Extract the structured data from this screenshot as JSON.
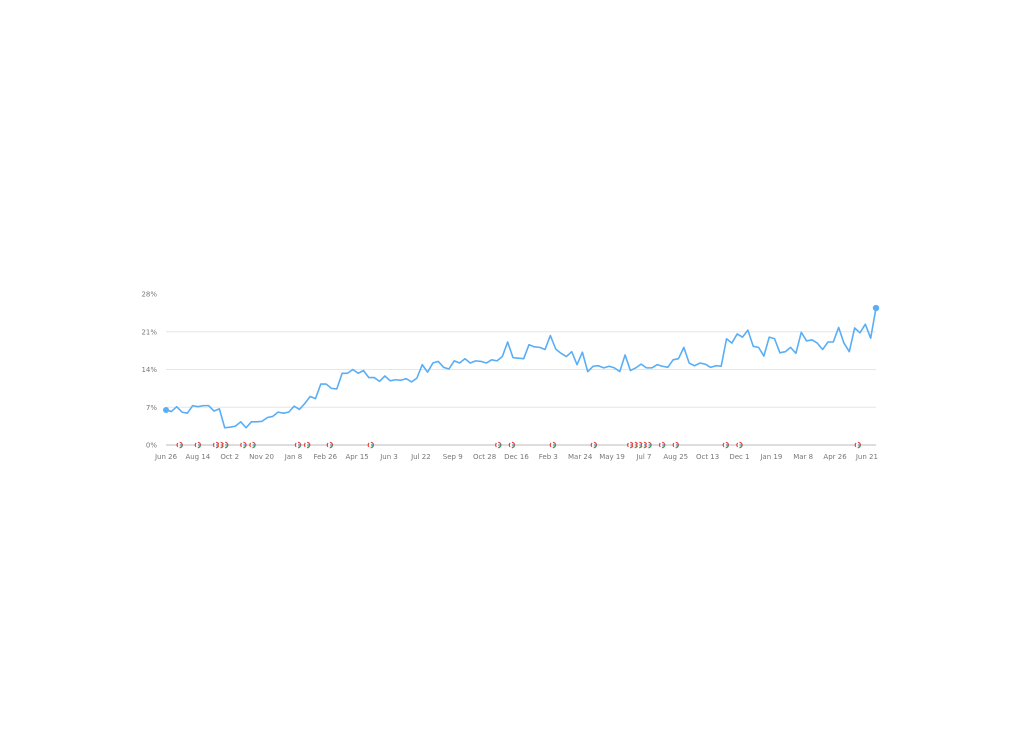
{
  "chart_data": {
    "type": "line",
    "title": "",
    "xlabel": "",
    "ylabel": "",
    "ylim": [
      0,
      28
    ],
    "y_ticks": [
      "0%",
      "7%",
      "14%",
      "21%",
      "28%"
    ],
    "y_tick_values": [
      0,
      7,
      14,
      21,
      28
    ],
    "x_ticks": [
      "Jun 26",
      "Aug 14",
      "Oct 2",
      "Nov 20",
      "Jan 8",
      "Feb 26",
      "Apr 15",
      "Jun 3",
      "Jul 22",
      "Sep 9",
      "Oct 28",
      "Dec 16",
      "Feb 3",
      "Mar 24",
      "May 19",
      "Jul 7",
      "Aug 25",
      "Oct 13",
      "Dec 1",
      "Jan 19",
      "Mar 8",
      "Apr 26",
      "Jun 21"
    ],
    "grid": true,
    "line_color": "#5aaef5",
    "series": [
      {
        "values": [
          6.5,
          6.2,
          7.1,
          6.1,
          5.9,
          7.3,
          7.1,
          7.3,
          7.3,
          6.3,
          6.7,
          3.2,
          3.3,
          3.5,
          4.3,
          3.2,
          4.3,
          4.3,
          4.4,
          5.1,
          5.3,
          6.1,
          5.9,
          6.1,
          7.2,
          6.6,
          7.7,
          9.0,
          8.6,
          11.3,
          11.3,
          10.5,
          10.4,
          13.3,
          13.3,
          14.0,
          13.3,
          13.8,
          12.5,
          12.5,
          11.8,
          12.8,
          11.9,
          12.1,
          12.0,
          12.3,
          11.7,
          12.4,
          14.9,
          13.5,
          15.2,
          15.5,
          14.4,
          14.1,
          15.6,
          15.2,
          16.0,
          15.2,
          15.6,
          15.5,
          15.2,
          15.8,
          15.6,
          16.4,
          19.1,
          16.2,
          16.1,
          16.0,
          18.6,
          18.2,
          18.1,
          17.7,
          20.3,
          17.8,
          17.0,
          16.4,
          17.3,
          14.9,
          17.2,
          13.6,
          14.6,
          14.7,
          14.3,
          14.6,
          14.3,
          13.6,
          16.7,
          13.8,
          14.3,
          15.0,
          14.3,
          14.3,
          14.9,
          14.6,
          14.4,
          15.8,
          16.0,
          18.1,
          15.2,
          14.7,
          15.2,
          15.0,
          14.4,
          14.7,
          14.6,
          19.7,
          18.9,
          20.6,
          20.0,
          21.3,
          18.3,
          18.1,
          16.5,
          20.0,
          19.7,
          17.1,
          17.3,
          18.1,
          17.0,
          20.9,
          19.3,
          19.5,
          18.9,
          17.7,
          19.1,
          19.1,
          21.8,
          18.9,
          17.3,
          21.7,
          20.8,
          22.4,
          19.8,
          25.4
        ]
      }
    ],
    "annotations": {
      "icon": "google-update-icon",
      "dates": [
        "Jul 17",
        "Aug 14",
        "Sep 11",
        "Sep 18",
        "Sep 25",
        "Oct 23",
        "Nov 6",
        "Jan 15",
        "Jan 29",
        "Mar 5",
        "May 7",
        "Nov 19",
        "Dec 10",
        "Feb 11",
        "Apr 15",
        "Jun 10",
        "Jun 17",
        "Jun 24",
        "Jul 1",
        "Jul 8",
        "Jul 29",
        "Aug 19",
        "Nov 4",
        "Nov 25",
        "May 26"
      ]
    }
  }
}
